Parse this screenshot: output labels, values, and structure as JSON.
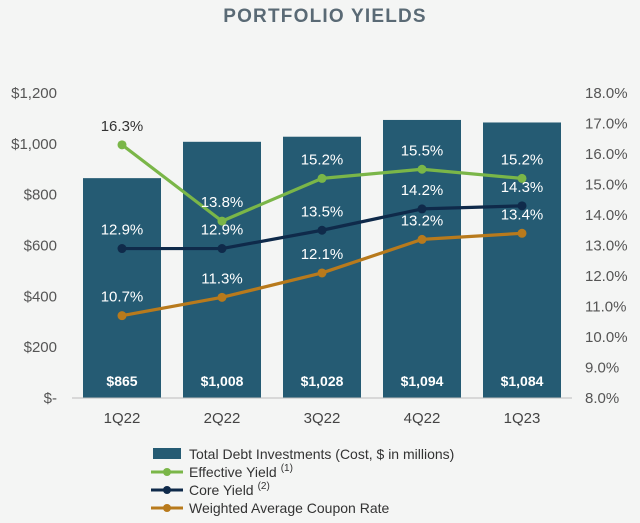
{
  "chart_data": {
    "type": "bar",
    "title": "PORTFOLIO YIELDS",
    "categories": [
      "1Q22",
      "2Q22",
      "3Q22",
      "4Q22",
      "1Q23"
    ],
    "bars": {
      "name": "Total Debt Investments (Cost, $ in millions)",
      "values": [
        865,
        1008,
        1028,
        1094,
        1084
      ],
      "labels": [
        "$865",
        "$1,008",
        "$1,028",
        "$1,094",
        "$1,084"
      ],
      "color": "#255b73"
    },
    "lines": [
      {
        "name": "Effective Yield",
        "sup": "(1)",
        "values": [
          16.3,
          13.8,
          15.2,
          15.5,
          15.2
        ],
        "labels": [
          "16.3%",
          "13.8%",
          "15.2%",
          "15.5%",
          "15.2%"
        ],
        "color": "#7ab648"
      },
      {
        "name": "Core Yield",
        "sup": "(2)",
        "values": [
          12.9,
          12.9,
          13.5,
          14.2,
          14.3
        ],
        "labels": [
          "12.9%",
          "12.9%",
          "13.5%",
          "14.2%",
          "14.3%"
        ],
        "color": "#0f2a4a"
      },
      {
        "name": "Weighted Average Coupon Rate",
        "sup": "",
        "values": [
          10.7,
          11.3,
          12.1,
          13.2,
          13.4
        ],
        "labels": [
          "10.7%",
          "11.3%",
          "12.1%",
          "13.2%",
          "13.4%"
        ],
        "color": "#b87a1c"
      }
    ],
    "y_left": {
      "min": 0,
      "max": 1200,
      "step": 200,
      "ticks": [
        "$-",
        "$200",
        "$400",
        "$600",
        "$800",
        "$1,000",
        "$1,200"
      ]
    },
    "y_right": {
      "min": 8.0,
      "max": 18.0,
      "step": 1.0,
      "ticks": [
        "8.0%",
        "9.0%",
        "10.0%",
        "11.0%",
        "12.0%",
        "13.0%",
        "14.0%",
        "15.0%",
        "16.0%",
        "17.0%",
        "18.0%"
      ]
    },
    "legend_position": "bottom",
    "grid": false
  }
}
